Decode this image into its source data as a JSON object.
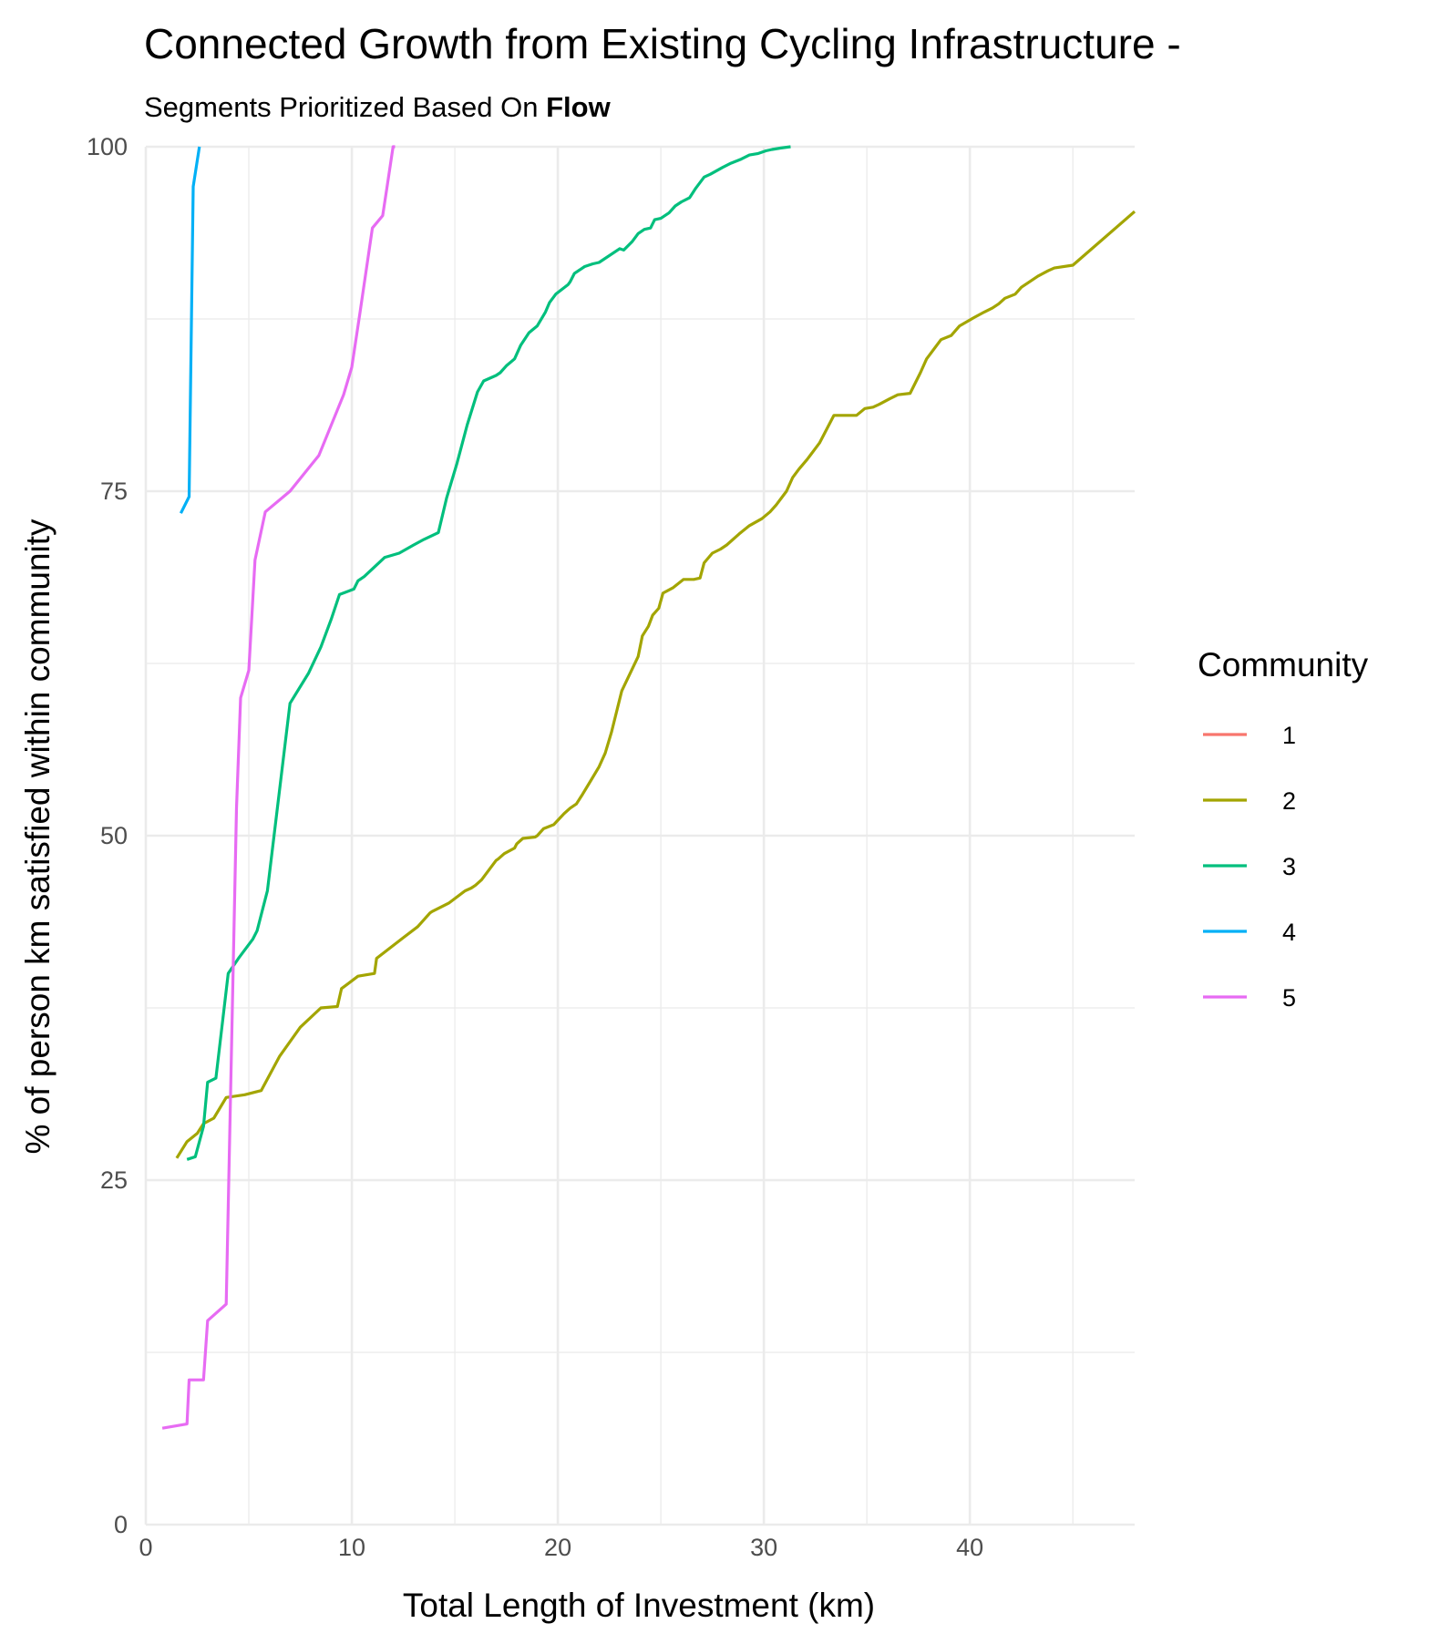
{
  "chart_data": {
    "type": "line",
    "title": "Connected Growth from Existing Cycling Infrastructure -",
    "subtitle_prefix": "Segments Prioritized Based On ",
    "subtitle_bold": "Flow",
    "xlabel": "Total Length of Investment (km)",
    "ylabel": "% of person km satisfied within community",
    "xlim": [
      0,
      48
    ],
    "ylim": [
      0,
      100
    ],
    "x_ticks": [
      0,
      10,
      20,
      30,
      40
    ],
    "x_tick_labels": [
      "0",
      "10",
      "20",
      "30",
      "40"
    ],
    "y_ticks": [
      0,
      25,
      50,
      75,
      100
    ],
    "y_tick_labels": [
      "0",
      "25",
      "50",
      "75",
      "100"
    ],
    "grid": true,
    "legend": {
      "title": "Community",
      "position": "right"
    },
    "series": [
      {
        "name": "1",
        "color": "#F8766D",
        "x": [],
        "y": []
      },
      {
        "name": "2",
        "color": "#A3A500",
        "x": [
          1.5,
          2.0,
          2.5,
          2.8,
          3.3,
          3.9,
          4.8,
          5.6,
          6.5,
          7.5,
          8.5,
          9.3,
          9.5,
          10.3,
          11.1,
          11.2,
          12.5,
          13.2,
          13.8,
          13.9,
          14.7,
          15.5,
          15.8,
          16.0,
          16.3,
          17.0,
          17.1,
          17.4,
          17.9,
          18.0,
          18.3,
          18.9,
          19.0,
          19.3,
          19.8,
          20.3,
          20.6,
          20.9,
          21.2,
          21.6,
          22.0,
          22.3,
          22.6,
          23.1,
          23.9,
          24.1,
          24.4,
          24.6,
          24.9,
          25.1,
          25.6,
          26.1,
          26.6,
          26.9,
          27.1,
          27.5,
          27.9,
          28.2,
          28.8,
          29.3,
          29.9,
          30.3,
          30.6,
          31.1,
          31.4,
          31.7,
          32.1,
          32.7,
          33.4,
          34.1,
          34.5,
          34.9,
          35.3,
          35.6,
          36.1,
          36.5,
          37.1,
          37.6,
          37.9,
          38.6,
          39.1,
          39.5,
          40.2,
          40.7,
          41.1,
          41.4,
          41.7,
          42.2,
          42.5,
          42.9,
          43.3,
          43.8,
          44.1,
          45.0,
          48.0
        ],
        "y": [
          26.6,
          27.8,
          28.4,
          29.1,
          29.5,
          31.0,
          31.2,
          31.5,
          34.0,
          36.1,
          37.5,
          37.6,
          38.9,
          39.8,
          40.0,
          41.1,
          42.6,
          43.4,
          44.4,
          44.5,
          45.1,
          46.0,
          46.2,
          46.4,
          46.8,
          48.2,
          48.3,
          48.7,
          49.1,
          49.4,
          49.8,
          49.9,
          50.0,
          50.5,
          50.8,
          51.6,
          52.0,
          52.3,
          53.0,
          54.0,
          55.0,
          56.0,
          57.5,
          60.5,
          63.0,
          64.5,
          65.2,
          66.0,
          66.5,
          67.6,
          68.0,
          68.6,
          68.6,
          68.7,
          69.8,
          70.5,
          70.8,
          71.1,
          71.9,
          72.5,
          73.0,
          73.5,
          74.0,
          75.0,
          76.0,
          76.6,
          77.3,
          78.5,
          80.5,
          80.5,
          80.5,
          81.0,
          81.1,
          81.3,
          81.7,
          82.0,
          82.1,
          83.6,
          84.6,
          86.0,
          86.3,
          87.0,
          87.6,
          88.0,
          88.3,
          88.6,
          89.0,
          89.3,
          89.8,
          90.2,
          90.6,
          91.0,
          91.2,
          91.4,
          95.3
        ]
      },
      {
        "name": "3",
        "color": "#00BF7D",
        "x": [
          2.0,
          2.4,
          2.8,
          3.0,
          3.4,
          4.0,
          4.5,
          5.2,
          5.4,
          5.9,
          7.0,
          7.9,
          8.5,
          9.0,
          9.4,
          10.1,
          10.3,
          10.6,
          11.6,
          12.3,
          13.0,
          13.5,
          14.2,
          14.6,
          15.1,
          15.6,
          16.1,
          16.4,
          17.0,
          17.2,
          17.5,
          17.9,
          18.2,
          18.6,
          19.0,
          19.4,
          19.6,
          19.9,
          20.5,
          20.6,
          20.8,
          21.3,
          21.7,
          22.0,
          23.0,
          23.2,
          23.6,
          23.9,
          24.2,
          24.5,
          24.7,
          25.0,
          25.4,
          25.7,
          26.0,
          26.4,
          26.7,
          27.1,
          27.4,
          28.0,
          28.4,
          28.9,
          29.3,
          29.7,
          30.1,
          30.4,
          30.8,
          31.3
        ],
        "y": [
          26.5,
          26.7,
          28.9,
          32.1,
          32.4,
          40.0,
          41.1,
          42.5,
          43.1,
          46.0,
          59.6,
          61.8,
          63.7,
          65.7,
          67.5,
          67.9,
          68.5,
          68.8,
          70.2,
          70.5,
          71.1,
          71.5,
          72.0,
          74.5,
          77.0,
          79.8,
          82.2,
          83.0,
          83.4,
          83.6,
          84.1,
          84.6,
          85.6,
          86.5,
          87.0,
          88.0,
          88.7,
          89.3,
          90.0,
          90.2,
          90.8,
          91.3,
          91.5,
          91.6,
          92.6,
          92.5,
          93.1,
          93.7,
          94.0,
          94.1,
          94.7,
          94.8,
          95.2,
          95.7,
          96.0,
          96.3,
          97.0,
          97.8,
          98.0,
          98.5,
          98.8,
          99.1,
          99.4,
          99.5,
          99.7,
          99.8,
          99.9,
          100.0
        ]
      },
      {
        "name": "4",
        "color": "#00B0F6",
        "x": [
          1.7,
          2.1,
          2.3,
          2.6
        ],
        "y": [
          73.4,
          74.6,
          97.1,
          100.0
        ]
      },
      {
        "name": "5",
        "color": "#E76BF3",
        "x": [
          0.8,
          2.0,
          2.1,
          2.8,
          3.0,
          3.9,
          4.4,
          4.6,
          5.0,
          5.3,
          5.8,
          7.0,
          8.4,
          9.6,
          10.0,
          10.4,
          11.0,
          11.5,
          11.7,
          12.0,
          12.1
        ],
        "y": [
          7.0,
          7.3,
          10.5,
          10.5,
          14.8,
          16.0,
          52.0,
          60.0,
          62.0,
          70.0,
          73.5,
          75.0,
          77.6,
          82.0,
          84.0,
          88.0,
          94.1,
          95.0,
          97.0,
          100.0,
          100.0
        ]
      }
    ]
  }
}
